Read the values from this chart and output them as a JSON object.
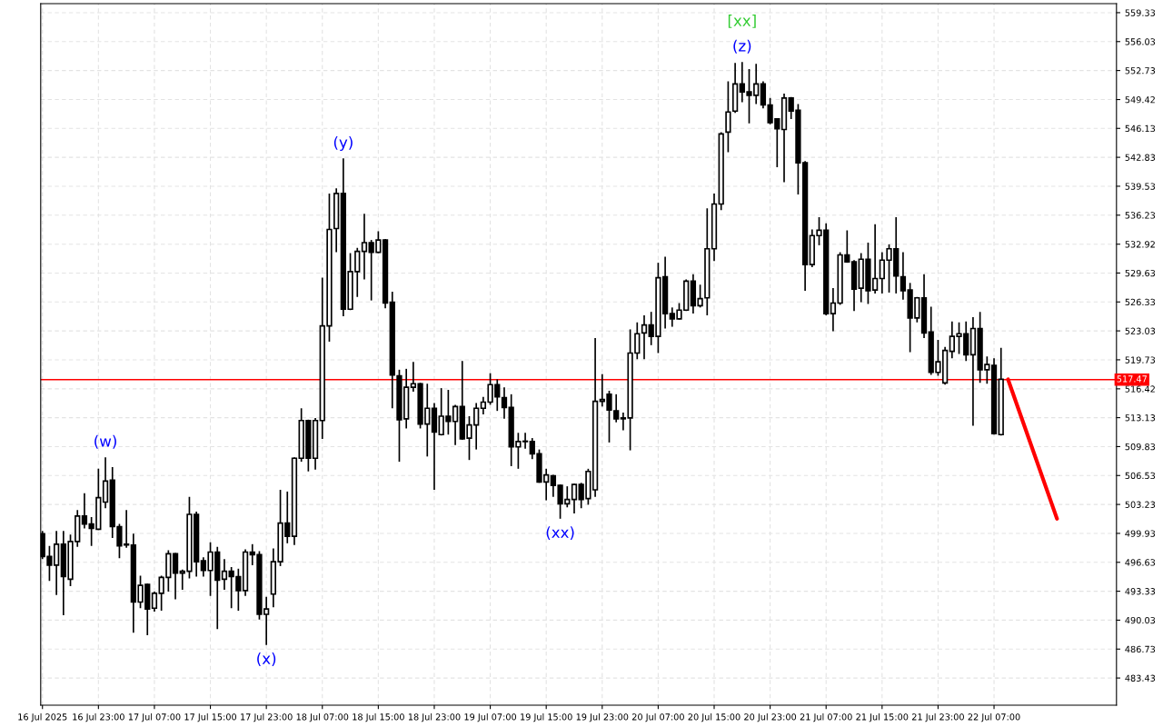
{
  "chart_data": {
    "type": "candlestick",
    "xlim": [
      "2025-07-16T14:45",
      "2025-07-23T00:30"
    ],
    "ylim": [
      480.33,
      560.36
    ],
    "yticks": [
      483.43,
      486.73,
      490.03,
      493.33,
      496.63,
      499.93,
      503.23,
      506.53,
      509.83,
      513.13,
      516.42,
      519.73,
      523.03,
      526.33,
      529.63,
      532.92,
      536.23,
      539.53,
      542.83,
      546.13,
      549.42,
      552.73,
      556.03,
      559.33
    ],
    "xticks": [
      {
        "value": "2025-07-16T15:00",
        "label": "16 Jul 2025"
      },
      {
        "value": "2025-07-16T23:00",
        "label": "16 Jul 23:00"
      },
      {
        "value": "2025-07-17T07:00",
        "label": "17 Jul 07:00"
      },
      {
        "value": "2025-07-17T15:00",
        "label": "17 Jul 15:00"
      },
      {
        "value": "2025-07-17T23:00",
        "label": "17 Jul 23:00"
      },
      {
        "value": "2025-07-18T07:00",
        "label": "18 Jul 07:00"
      },
      {
        "value": "2025-07-18T15:00",
        "label": "18 Jul 15:00"
      },
      {
        "value": "2025-07-18T23:00",
        "label": "18 Jul 23:00"
      },
      {
        "value": "2025-07-19T07:00",
        "label": "19 Jul 07:00"
      },
      {
        "value": "2025-07-19T15:00",
        "label": "19 Jul 15:00"
      },
      {
        "value": "2025-07-19T23:00",
        "label": "19 Jul 23:00"
      },
      {
        "value": "2025-07-20T07:00",
        "label": "20 Jul 07:00"
      },
      {
        "value": "2025-07-20T15:00",
        "label": "20 Jul 15:00"
      },
      {
        "value": "2025-07-20T23:00",
        "label": "20 Jul 23:00"
      },
      {
        "value": "2025-07-21T07:00",
        "label": "21 Jul 07:00"
      },
      {
        "value": "2025-07-21T15:00",
        "label": "21 Jul 15:00"
      },
      {
        "value": "2025-07-21T23:00",
        "label": "21 Jul 23:00"
      },
      {
        "value": "2025-07-22T07:00",
        "label": "22 Jul 07:00"
      }
    ],
    "grid": true,
    "ref_lines": [
      {
        "axis": "y",
        "value": 517.47,
        "label": "517.47",
        "color": "#ff0000"
      }
    ],
    "annotations": [
      {
        "text": "(w)",
        "x": "2025-07-17T00:00",
        "y": 508.6
      },
      {
        "text": "(x)",
        "x": "2025-07-17T23:00",
        "y": 487.2
      },
      {
        "text": "(y)",
        "x": "2025-07-18T10:00",
        "y": 542.7
      },
      {
        "text": "(xx)",
        "x": "2025-07-19T17:00",
        "y": 501.6
      },
      {
        "text": "(z)",
        "x": "2025-07-20T19:00",
        "y": 553.7
      },
      {
        "text": "[xx]",
        "x": "2025-07-20T19:00",
        "y": 553.7
      }
    ],
    "series": [
      {
        "color": "#000000",
        "x": [
          "2025-07-16T15:00",
          "2025-07-16T16:00",
          "2025-07-16T17:00",
          "2025-07-16T18:00",
          "2025-07-16T19:00",
          "2025-07-16T20:00",
          "2025-07-16T21:00",
          "2025-07-16T22:00",
          "2025-07-16T23:00",
          "2025-07-17T00:00",
          "2025-07-17T01:00",
          "2025-07-17T02:00",
          "2025-07-17T03:00",
          "2025-07-17T04:00",
          "2025-07-17T05:00",
          "2025-07-17T06:00",
          "2025-07-17T07:00",
          "2025-07-17T08:00",
          "2025-07-17T09:00",
          "2025-07-17T10:00",
          "2025-07-17T11:00",
          "2025-07-17T12:00",
          "2025-07-17T13:00",
          "2025-07-17T14:00",
          "2025-07-17T15:00",
          "2025-07-17T16:00",
          "2025-07-17T17:00",
          "2025-07-17T18:00",
          "2025-07-17T19:00",
          "2025-07-17T20:00",
          "2025-07-17T21:00",
          "2025-07-17T22:00",
          "2025-07-17T23:00",
          "2025-07-18T00:00",
          "2025-07-18T01:00",
          "2025-07-18T02:00",
          "2025-07-18T03:00",
          "2025-07-18T04:00",
          "2025-07-18T05:00",
          "2025-07-18T06:00",
          "2025-07-18T07:00",
          "2025-07-18T08:00",
          "2025-07-18T09:00",
          "2025-07-18T10:00",
          "2025-07-18T11:00",
          "2025-07-18T12:00",
          "2025-07-18T13:00",
          "2025-07-18T14:00",
          "2025-07-18T15:00",
          "2025-07-18T16:00",
          "2025-07-18T17:00",
          "2025-07-18T18:00",
          "2025-07-18T19:00",
          "2025-07-18T20:00",
          "2025-07-18T21:00",
          "2025-07-18T22:00",
          "2025-07-18T23:00",
          "2025-07-19T00:00",
          "2025-07-19T01:00",
          "2025-07-19T02:00",
          "2025-07-19T03:00",
          "2025-07-19T04:00",
          "2025-07-19T05:00",
          "2025-07-19T06:00",
          "2025-07-19T07:00",
          "2025-07-19T08:00",
          "2025-07-19T09:00",
          "2025-07-19T10:00",
          "2025-07-19T11:00",
          "2025-07-19T12:00",
          "2025-07-19T13:00",
          "2025-07-19T14:00",
          "2025-07-19T15:00",
          "2025-07-19T16:00",
          "2025-07-19T17:00",
          "2025-07-19T18:00",
          "2025-07-19T19:00",
          "2025-07-19T20:00",
          "2025-07-19T21:00",
          "2025-07-19T22:00",
          "2025-07-19T23:00",
          "2025-07-20T00:00",
          "2025-07-20T01:00",
          "2025-07-20T02:00",
          "2025-07-20T03:00",
          "2025-07-20T04:00",
          "2025-07-20T05:00",
          "2025-07-20T06:00",
          "2025-07-20T07:00",
          "2025-07-20T08:00",
          "2025-07-20T09:00",
          "2025-07-20T10:00",
          "2025-07-20T11:00",
          "2025-07-20T12:00",
          "2025-07-20T13:00",
          "2025-07-20T14:00",
          "2025-07-20T15:00",
          "2025-07-20T16:00",
          "2025-07-20T17:00",
          "2025-07-20T18:00",
          "2025-07-20T19:00",
          "2025-07-20T20:00",
          "2025-07-20T21:00",
          "2025-07-20T22:00",
          "2025-07-20T23:00",
          "2025-07-21T00:00",
          "2025-07-21T01:00",
          "2025-07-21T02:00",
          "2025-07-21T03:00",
          "2025-07-21T04:00",
          "2025-07-21T05:00",
          "2025-07-21T06:00",
          "2025-07-21T07:00",
          "2025-07-21T08:00",
          "2025-07-21T09:00",
          "2025-07-21T10:00",
          "2025-07-21T11:00",
          "2025-07-21T12:00",
          "2025-07-21T13:00",
          "2025-07-21T14:00",
          "2025-07-21T15:00",
          "2025-07-21T16:00",
          "2025-07-21T17:00",
          "2025-07-21T18:00",
          "2025-07-21T19:00",
          "2025-07-21T20:00",
          "2025-07-21T21:00",
          "2025-07-21T22:00",
          "2025-07-21T23:00",
          "2025-07-22T00:00",
          "2025-07-22T01:00",
          "2025-07-22T02:00",
          "2025-07-22T03:00",
          "2025-07-22T04:00",
          "2025-07-22T05:00",
          "2025-07-22T06:00",
          "2025-07-22T07:00",
          "2025-07-22T08:00"
        ],
        "ohlc": [
          [
            499.9,
            500.2,
            497.0,
            497.3
          ],
          [
            497.3,
            498.5,
            494.5,
            496.3
          ],
          [
            496.3,
            500.2,
            492.9,
            498.7
          ],
          [
            498.7,
            500.2,
            490.6,
            495.0
          ],
          [
            494.7,
            499.8,
            493.9,
            499.0
          ],
          [
            499.0,
            502.6,
            498.4,
            501.9
          ],
          [
            501.9,
            504.5,
            500.5,
            501.0
          ],
          [
            501.0,
            501.8,
            498.5,
            500.5
          ],
          [
            500.4,
            507.3,
            500.3,
            504.0
          ],
          [
            503.5,
            508.6,
            502.8,
            505.9
          ],
          [
            506.0,
            507.5,
            499.4,
            500.7
          ],
          [
            500.7,
            501.0,
            497.1,
            498.5
          ],
          [
            498.6,
            502.6,
            498.3,
            498.7
          ],
          [
            498.6,
            499.9,
            488.6,
            492.1
          ],
          [
            492.1,
            495.1,
            491.4,
            494.0
          ],
          [
            494.1,
            494.2,
            488.3,
            491.3
          ],
          [
            491.4,
            493.3,
            491.0,
            493.1
          ],
          [
            493.1,
            495.1,
            491.1,
            494.9
          ],
          [
            494.9,
            498.0,
            493.3,
            497.6
          ],
          [
            497.6,
            497.7,
            492.4,
            495.4
          ],
          [
            495.4,
            495.8,
            493.5,
            495.6
          ],
          [
            495.6,
            504.1,
            494.8,
            502.1
          ],
          [
            502.1,
            502.4,
            495.0,
            496.7
          ],
          [
            496.8,
            497.2,
            495.0,
            495.7
          ],
          [
            495.7,
            498.9,
            492.8,
            497.8
          ],
          [
            497.8,
            498.4,
            489.0,
            494.6
          ],
          [
            494.7,
            497.0,
            493.5,
            495.6
          ],
          [
            495.6,
            496.1,
            491.4,
            495.0
          ],
          [
            495.0,
            495.9,
            491.1,
            493.4
          ],
          [
            493.4,
            498.1,
            492.8,
            497.8
          ],
          [
            497.8,
            498.7,
            496.3,
            497.5
          ],
          [
            497.5,
            497.9,
            490.1,
            490.7
          ],
          [
            490.7,
            492.7,
            487.2,
            491.3
          ],
          [
            493.0,
            498.2,
            491.5,
            496.7
          ],
          [
            496.7,
            504.9,
            496.2,
            501.1
          ],
          [
            501.1,
            504.7,
            498.8,
            499.6
          ],
          [
            499.6,
            508.6,
            498.6,
            508.5
          ],
          [
            508.5,
            514.2,
            508.1,
            512.8
          ],
          [
            512.8,
            512.9,
            507.0,
            508.5
          ],
          [
            508.5,
            513.1,
            507.2,
            512.8
          ],
          [
            512.8,
            529.1,
            510.7,
            523.6
          ],
          [
            523.6,
            538.7,
            521.8,
            534.6
          ],
          [
            534.7,
            539.3,
            532.0,
            538.7
          ],
          [
            538.7,
            542.7,
            524.7,
            525.5
          ],
          [
            525.5,
            531.9,
            525.4,
            529.8
          ],
          [
            529.8,
            532.5,
            526.9,
            532.1
          ],
          [
            532.1,
            536.4,
            528.9,
            533.1
          ],
          [
            533.1,
            533.4,
            526.5,
            532.0
          ],
          [
            532.0,
            534.4,
            531.9,
            533.4
          ],
          [
            533.4,
            533.5,
            525.6,
            526.2
          ],
          [
            526.3,
            527.5,
            514.2,
            518.0
          ],
          [
            517.9,
            518.6,
            508.1,
            512.9
          ],
          [
            513.0,
            518.7,
            511.9,
            516.6
          ],
          [
            516.6,
            519.5,
            516.1,
            517.0
          ],
          [
            517.0,
            517.1,
            511.9,
            512.4
          ],
          [
            512.4,
            517.0,
            508.7,
            514.2
          ],
          [
            514.2,
            514.8,
            504.9,
            511.5
          ],
          [
            511.2,
            516.5,
            511.1,
            513.3
          ],
          [
            513.3,
            516.3,
            511.2,
            512.7
          ],
          [
            512.7,
            514.6,
            510.0,
            514.4
          ],
          [
            514.4,
            519.6,
            510.6,
            510.7
          ],
          [
            510.8,
            513.3,
            508.3,
            512.3
          ],
          [
            512.3,
            514.8,
            509.5,
            514.2
          ],
          [
            514.2,
            515.5,
            513.5,
            514.9
          ],
          [
            514.9,
            518.2,
            514.6,
            516.9
          ],
          [
            516.9,
            517.5,
            513.9,
            515.5
          ],
          [
            515.4,
            516.6,
            513.0,
            514.3
          ],
          [
            514.3,
            515.8,
            507.6,
            509.8
          ],
          [
            509.8,
            511.4,
            507.3,
            510.4
          ],
          [
            510.4,
            511.4,
            509.6,
            510.4
          ],
          [
            510.4,
            510.8,
            508.4,
            509.0
          ],
          [
            509.0,
            509.5,
            505.7,
            505.8
          ],
          [
            505.8,
            507.3,
            503.7,
            506.6
          ],
          [
            506.5,
            506.6,
            504.1,
            505.4
          ],
          [
            505.4,
            505.5,
            501.6,
            503.3
          ],
          [
            503.3,
            505.3,
            502.9,
            503.8
          ],
          [
            503.8,
            505.6,
            502.2,
            505.5
          ],
          [
            505.5,
            505.7,
            502.8,
            503.8
          ],
          [
            503.9,
            507.3,
            503.2,
            507.0
          ],
          [
            504.9,
            522.2,
            504.1,
            515.0
          ],
          [
            515.0,
            518.1,
            514.4,
            515.2
          ],
          [
            515.8,
            516.2,
            510.3,
            514.0
          ],
          [
            513.9,
            515.8,
            512.6,
            513.0
          ],
          [
            513.1,
            513.7,
            511.7,
            513.0
          ],
          [
            513.1,
            523.2,
            509.4,
            520.5
          ],
          [
            520.5,
            524.0,
            519.8,
            522.7
          ],
          [
            522.8,
            524.8,
            519.8,
            523.7
          ],
          [
            523.7,
            525.2,
            521.4,
            522.4
          ],
          [
            522.4,
            530.8,
            520.5,
            529.1
          ],
          [
            529.2,
            531.5,
            523.3,
            525.0
          ],
          [
            525.0,
            525.7,
            523.5,
            524.4
          ],
          [
            524.4,
            526.2,
            524.3,
            525.4
          ],
          [
            525.4,
            528.9,
            525.3,
            528.7
          ],
          [
            528.7,
            529.5,
            525.0,
            525.9
          ],
          [
            525.9,
            528.3,
            525.7,
            526.7
          ],
          [
            526.8,
            537.0,
            524.8,
            532.4
          ],
          [
            532.4,
            538.7,
            531.0,
            537.5
          ],
          [
            537.5,
            545.7,
            536.8,
            545.5
          ],
          [
            545.7,
            551.5,
            543.4,
            548.0
          ],
          [
            548.1,
            553.6,
            547.9,
            551.2
          ],
          [
            551.2,
            553.7,
            549.1,
            550.3
          ],
          [
            550.3,
            552.9,
            546.7,
            549.9
          ],
          [
            549.9,
            553.5,
            548.9,
            551.2
          ],
          [
            551.2,
            551.5,
            548.4,
            548.8
          ],
          [
            548.8,
            549.6,
            546.6,
            546.8
          ],
          [
            547.2,
            547.3,
            541.7,
            546.1
          ],
          [
            546.0,
            550.1,
            540.0,
            549.6
          ],
          [
            549.6,
            549.7,
            547.2,
            548.1
          ],
          [
            548.2,
            548.9,
            538.6,
            542.2
          ],
          [
            542.2,
            542.4,
            527.6,
            530.6
          ],
          [
            530.6,
            534.6,
            530.3,
            533.9
          ],
          [
            533.9,
            536.0,
            532.8,
            534.5
          ],
          [
            534.5,
            535.3,
            524.8,
            525.0
          ],
          [
            525.0,
            527.9,
            523.0,
            526.2
          ],
          [
            526.2,
            532.0,
            526.0,
            531.7
          ],
          [
            531.7,
            534.5,
            530.8,
            530.9
          ],
          [
            530.9,
            531.1,
            525.3,
            527.8
          ],
          [
            527.9,
            531.9,
            526.3,
            531.2
          ],
          [
            531.2,
            533.1,
            526.1,
            527.6
          ],
          [
            527.7,
            535.2,
            527.3,
            529.0
          ],
          [
            529.0,
            532.0,
            527.3,
            531.1
          ],
          [
            531.1,
            532.9,
            527.4,
            532.4
          ],
          [
            532.4,
            536.0,
            527.3,
            529.3
          ],
          [
            529.2,
            532.0,
            526.6,
            527.6
          ],
          [
            527.7,
            528.5,
            520.6,
            524.5
          ],
          [
            524.5,
            526.9,
            524.0,
            526.8
          ],
          [
            526.8,
            529.5,
            522.2,
            522.8
          ],
          [
            522.9,
            525.8,
            518.0,
            518.3
          ],
          [
            518.3,
            522.0,
            517.9,
            519.5
          ],
          [
            517.1,
            521.2,
            516.9,
            520.8
          ],
          [
            520.7,
            524.1,
            519.9,
            522.4
          ],
          [
            522.4,
            524.0,
            520.4,
            522.7
          ],
          [
            522.7,
            524.1,
            519.6,
            520.3
          ],
          [
            520.3,
            524.6,
            512.2,
            523.3
          ],
          [
            523.3,
            525.2,
            517.1,
            518.6
          ],
          [
            518.6,
            520.1,
            517.0,
            519.2
          ],
          [
            519.1,
            519.9,
            511.2,
            511.3
          ],
          [
            511.2,
            521.1,
            511.1,
            517.5
          ]
        ]
      },
      {
        "type": "line",
        "color": "#ff0000",
        "x": [
          "2025-07-22T09:00",
          "2025-07-22T16:00"
        ],
        "values": [
          517.5,
          501.6
        ]
      }
    ]
  }
}
